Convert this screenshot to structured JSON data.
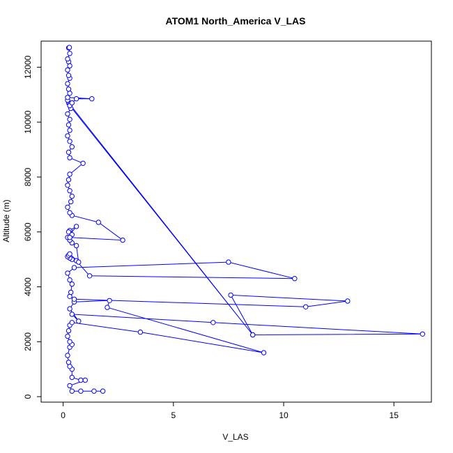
{
  "chart_data": {
    "type": "line",
    "title": "ATOM1 North_America V_LAS",
    "xlabel": "V_LAS",
    "ylabel": "Altitude (m)",
    "xlim": [
      -1.0,
      16.7
    ],
    "ylim": [
      -200,
      12950
    ],
    "xticks": [
      0,
      5,
      10,
      15
    ],
    "yticks": [
      0,
      2000,
      4000,
      6000,
      8000,
      10000,
      12000
    ],
    "grid": false,
    "series_color": "#0000ff",
    "marker": "open-circle",
    "series": [
      {
        "x": [
          1.8,
          1.4,
          0.8,
          0.4,
          0.3,
          1.0,
          0.8,
          0.4,
          0.4,
          0.3,
          0.25,
          0.2,
          0.3,
          0.4,
          0.3,
          0.2,
          0.25,
          0.3,
          0.4,
          3.5,
          9.1,
          2.0,
          2.1,
          0.5,
          0.3,
          0.7,
          0.4,
          6.8,
          16.3,
          8.6,
          7.6,
          12.9,
          11.0,
          0.5,
          0.3,
          0.35,
          0.4,
          0.3,
          0.2,
          0.5,
          7.5,
          10.5,
          1.2,
          0.6,
          0.4,
          0.3,
          0.2,
          0.25,
          0.3,
          0.7,
          0.6,
          0.4,
          0.3,
          0.2,
          0.6,
          0.3,
          0.25,
          0.4,
          0.3,
          2.7,
          1.6,
          0.4,
          0.3,
          0.2,
          0.35,
          0.4,
          0.3,
          0.2,
          0.25,
          0.3,
          0.9,
          0.3,
          0.25,
          0.4,
          0.3,
          0.2,
          0.3,
          0.25,
          0.3,
          0.2,
          0.35,
          0.3,
          0.25,
          0.2,
          0.3,
          8.6,
          0.3,
          0.4,
          0.6,
          1.3,
          0.2,
          0.3,
          0.25,
          0.2,
          0.3,
          0.25,
          0.2,
          0.3,
          0.25,
          0.2,
          0.3,
          0.25,
          0.28
        ],
        "y": [
          200,
          200,
          200,
          200,
          400,
          600,
          600,
          700,
          1000,
          1100,
          1250,
          1500,
          1800,
          1900,
          2000,
          2200,
          2400,
          2600,
          2700,
          2350,
          1600,
          3250,
          3500,
          3450,
          3200,
          2750,
          3000,
          2700,
          2280,
          2250,
          3700,
          3480,
          3270,
          3550,
          3650,
          3800,
          4100,
          4250,
          4500,
          4700,
          4900,
          4300,
          4400,
          4950,
          5000,
          5050,
          5100,
          5150,
          5200,
          4900,
          5500,
          5600,
          5700,
          5800,
          6200,
          6050,
          6000,
          5900,
          5800,
          5700,
          6350,
          6600,
          6700,
          6900,
          7100,
          7300,
          7500,
          7700,
          7900,
          8100,
          8500,
          8700,
          8900,
          9100,
          9300,
          9500,
          9700,
          9900,
          10100,
          10300,
          10500,
          10600,
          10700,
          10800,
          10650,
          2250,
          10600,
          10700,
          10850,
          10850,
          10900,
          11050,
          11200,
          11400,
          11600,
          11700,
          11900,
          12050,
          12200,
          12300,
          12500,
          12700,
          12720
        ]
      }
    ]
  }
}
